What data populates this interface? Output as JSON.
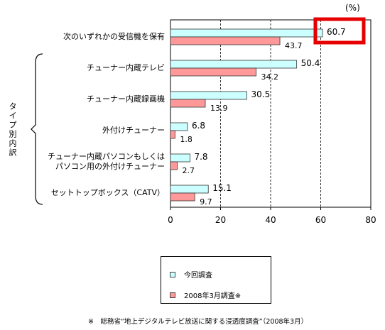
{
  "chart_data": {
    "type": "bar",
    "orientation": "horizontal",
    "unit_label": "(%)",
    "categories": [
      "次のいずれかの受信機を保有",
      "チューナー内蔵テレビ",
      "チューナー内蔵録画機",
      "外付けチューナー",
      "チューナー内蔵パソコンもしくは|パソコン用の外付けチューナー",
      "セットトップボックス（CATV）"
    ],
    "group_label": "タイプ別内訳",
    "series": [
      {
        "name": "今回調査",
        "values": [
          60.7,
          50.4,
          30.5,
          6.8,
          7.8,
          15.1
        ],
        "color": "#ccffff"
      },
      {
        "name": "2008年3月調査※",
        "values": [
          43.7,
          34.2,
          13.9,
          1.8,
          2.7,
          9.7
        ],
        "color": "#ff9999"
      }
    ],
    "xlim": [
      0,
      80
    ],
    "xticks": [
      "0",
      "20",
      "40",
      "60",
      "80"
    ],
    "grid": true,
    "highlight": {
      "category_index": 0,
      "series_index": 0,
      "color": "#e60000"
    },
    "legend_placement": "bottom"
  },
  "source_note": "※　総務省“地上デジタルテレビ放送に関する浸透度調査”（2008年3月）"
}
